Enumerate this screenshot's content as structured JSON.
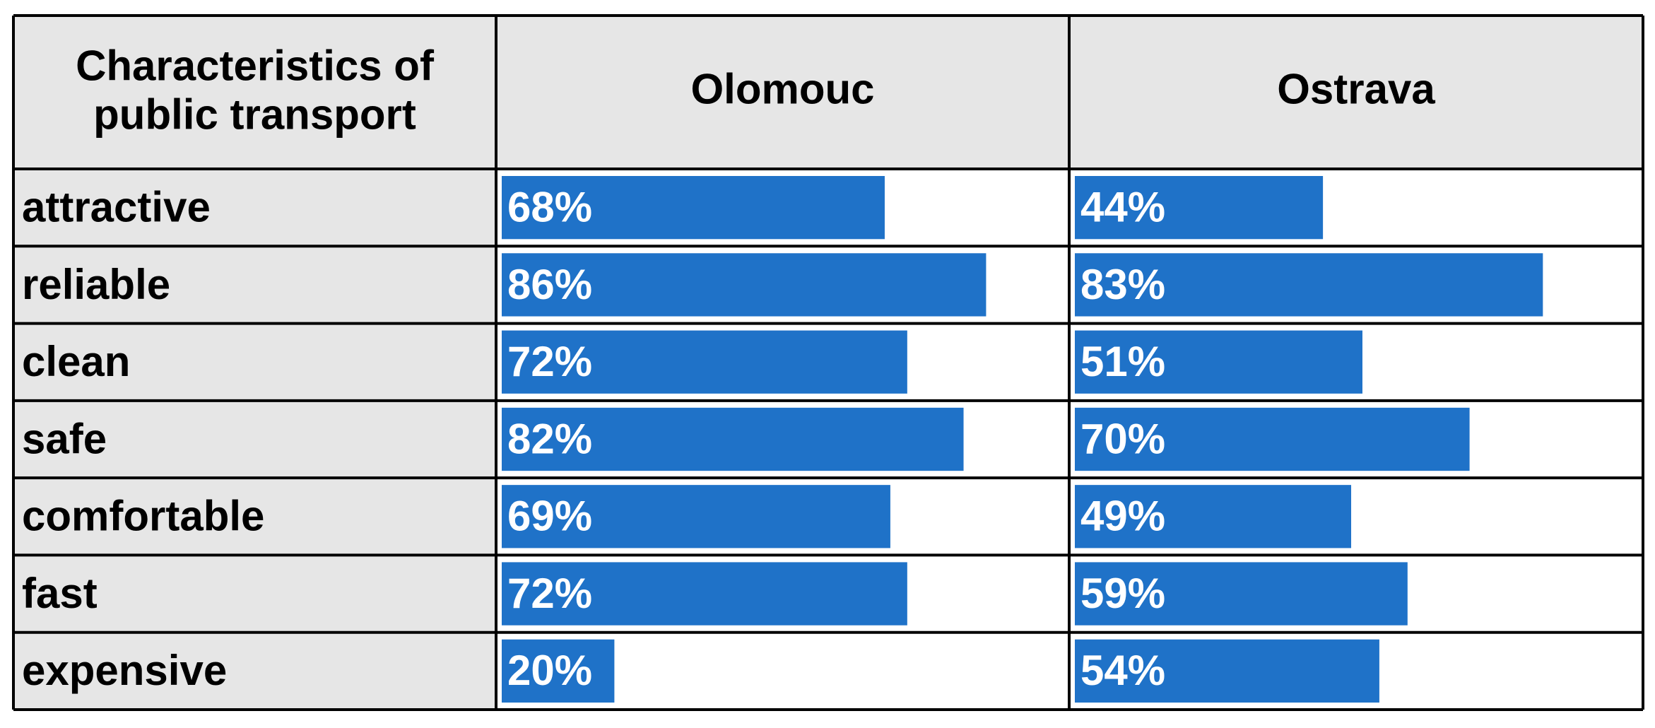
{
  "table": {
    "header": [
      "Characteristics of public transport",
      "Olomouc",
      "Ostrava"
    ],
    "color": "#1f72c8",
    "rows": [
      {
        "label": "attractive",
        "values": [
          68,
          44
        ],
        "value_labels": [
          "68%",
          "44%"
        ]
      },
      {
        "label": "reliable",
        "values": [
          86,
          83
        ],
        "value_labels": [
          "86%",
          "83%"
        ]
      },
      {
        "label": "clean",
        "values": [
          72,
          51
        ],
        "value_labels": [
          "72%",
          "51%"
        ]
      },
      {
        "label": "safe",
        "values": [
          82,
          70
        ],
        "value_labels": [
          "82%",
          "70%"
        ]
      },
      {
        "label": "comfortable",
        "values": [
          69,
          49
        ],
        "value_labels": [
          "69%",
          "49%"
        ]
      },
      {
        "label": "fast",
        "values": [
          72,
          59
        ],
        "value_labels": [
          "72%",
          "59%"
        ]
      },
      {
        "label": "expensive",
        "values": [
          20,
          54
        ],
        "value_labels": [
          "20%",
          "54%"
        ]
      }
    ]
  }
}
